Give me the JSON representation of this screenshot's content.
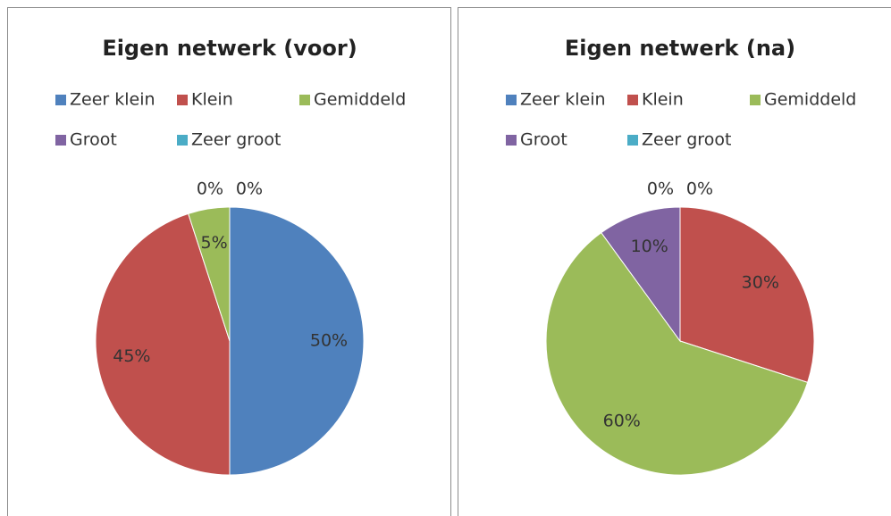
{
  "chart_data": [
    {
      "type": "pie",
      "title": "Eigen netwerk (voor)",
      "categories": [
        "Zeer klein",
        "Klein",
        "Gemiddeld",
        "Groot",
        "Zeer groot"
      ],
      "values": [
        50,
        45,
        5,
        0,
        0
      ],
      "value_labels": [
        "50%",
        "45%",
        "5%",
        "0%",
        "0%"
      ],
      "colors": [
        "#4f81bd",
        "#c0504d",
        "#9bbb59",
        "#8064a2",
        "#4bacc6"
      ]
    },
    {
      "type": "pie",
      "title": "Eigen netwerk (na)",
      "categories": [
        "Zeer klein",
        "Klein",
        "Gemiddeld",
        "Groot",
        "Zeer groot"
      ],
      "values": [
        0,
        30,
        60,
        10,
        0
      ],
      "value_labels": [
        "0%",
        "30%",
        "60%",
        "10%",
        "0%"
      ],
      "colors": [
        "#4f81bd",
        "#c0504d",
        "#9bbb59",
        "#8064a2",
        "#4bacc6"
      ]
    }
  ]
}
